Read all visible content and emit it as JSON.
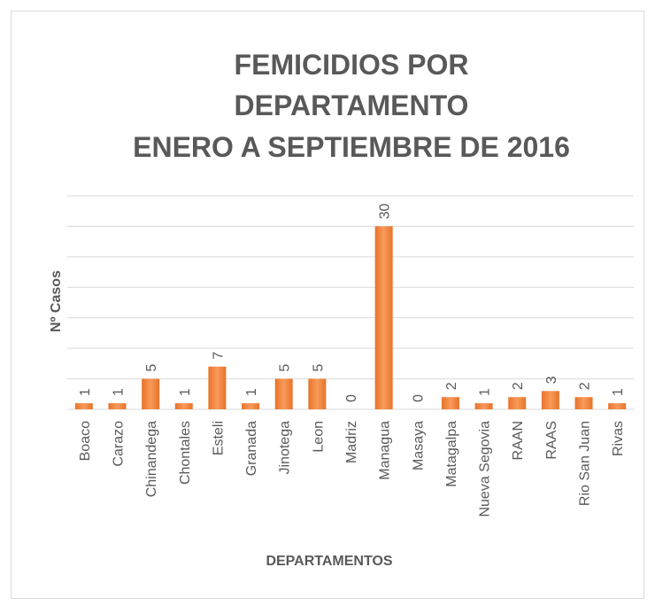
{
  "chart_data": {
    "type": "bar",
    "title": [
      "FEMICIDIOS POR",
      "DEPARTAMENTO",
      "ENERO A SEPTIEMBRE DE 2016"
    ],
    "x_label": "DEPARTAMENTOS",
    "y_label": "Nº Casos",
    "categories": [
      "Boaco",
      "Carazo",
      "Chinandega",
      "Chontales",
      "Esteli",
      "Granada",
      "Jinotega",
      "Leon",
      "Madriz",
      "Managua",
      "Masaya",
      "Matagalpa",
      "Nueva Segovia",
      "RAAN",
      "RAAS",
      "Rio San Juan",
      "Rivas"
    ],
    "values": [
      1,
      1,
      5,
      1,
      7,
      1,
      5,
      5,
      0,
      30,
      0,
      2,
      1,
      2,
      3,
      2,
      1
    ],
    "color": "#ED7D31",
    "ylim": [
      0,
      35
    ],
    "yticks": [
      0,
      5,
      10,
      15,
      20,
      25,
      30,
      35
    ],
    "grid": true
  }
}
